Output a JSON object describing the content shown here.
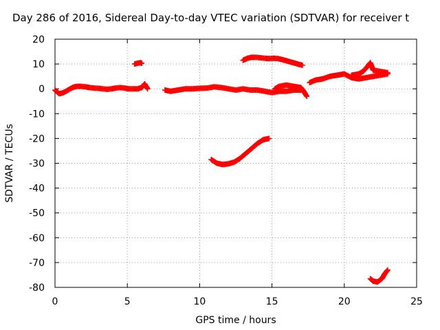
{
  "chart_data": {
    "type": "scatter",
    "title": "Day 286 of 2016, Sidereal Day-to-day VTEC variation (SDTVAR) for receiver t",
    "xlabel": "GPS time / hours",
    "ylabel": "SDTVAR / TECUs",
    "xlim": [
      0,
      25
    ],
    "ylim": [
      -80,
      20
    ],
    "xticks": [
      0,
      5,
      10,
      15,
      20,
      25
    ],
    "yticks": [
      20,
      10,
      0,
      -10,
      -20,
      -30,
      -40,
      -50,
      -60,
      -70,
      -80
    ],
    "grid": true,
    "marker": "plus",
    "color": "#ff0000",
    "series": [
      {
        "x": [
          0.0,
          0.3,
          0.6,
          0.9,
          1.2,
          1.5,
          1.8,
          2.1,
          2.4,
          2.7,
          3.0,
          3.3,
          3.6,
          3.9,
          4.2,
          4.5,
          4.8,
          5.1,
          5.4,
          5.7,
          6.0,
          6.2,
          6.4
        ],
        "y": [
          -0.5,
          -2.0,
          -1.5,
          -0.5,
          0.5,
          1.0,
          1.0,
          0.8,
          0.5,
          0.3,
          0.2,
          0.0,
          -0.2,
          0.0,
          0.3,
          0.5,
          0.3,
          0.0,
          0.0,
          0.0,
          0.5,
          2.0,
          0.0
        ]
      },
      {
        "x": [
          5.5,
          5.7,
          5.9,
          6.0
        ],
        "y": [
          10.0,
          10.3,
          10.5,
          10.3
        ]
      },
      {
        "x": [
          7.6,
          8.0,
          8.5,
          9.0,
          9.5,
          10.0,
          10.5,
          11.0,
          11.5,
          12.0,
          12.5,
          13.0,
          13.5,
          14.0,
          14.5,
          15.0,
          15.5,
          16.0,
          16.5,
          17.0
        ],
        "y": [
          -0.5,
          -1.0,
          -0.5,
          0.0,
          0.0,
          0.2,
          0.3,
          0.8,
          0.5,
          0.0,
          -0.5,
          0.0,
          -0.5,
          -0.5,
          -1.0,
          -1.5,
          -1.0,
          -1.0,
          -0.5,
          -0.5
        ]
      },
      {
        "x": [
          15.2,
          15.5,
          16.0,
          16.5,
          17.0,
          17.2,
          17.4
        ],
        "y": [
          0.0,
          1.0,
          1.5,
          1.0,
          0.5,
          -1.0,
          -3.0
        ]
      },
      {
        "x": [
          13.0,
          13.3,
          13.6,
          13.9,
          14.2,
          14.5,
          14.8,
          15.1,
          15.4,
          15.7,
          16.0,
          16.3,
          16.6,
          16.9,
          17.1
        ],
        "y": [
          11.5,
          12.3,
          12.7,
          12.7,
          12.5,
          12.3,
          12.2,
          12.3,
          12.2,
          11.8,
          11.3,
          10.8,
          10.3,
          9.8,
          9.5
        ]
      },
      {
        "x": [
          17.6,
          17.8,
          18.0,
          18.5,
          19.0,
          19.5,
          20.0,
          20.5,
          21.0,
          21.5,
          22.0,
          22.5,
          23.0
        ],
        "y": [
          2.5,
          3.0,
          3.5,
          4.0,
          5.0,
          5.5,
          6.0,
          4.5,
          4.0,
          4.5,
          5.0,
          5.5,
          6.0
        ]
      },
      {
        "x": [
          20.5,
          21.0,
          21.3,
          21.6,
          21.8,
          22.0,
          22.5,
          23.0
        ],
        "y": [
          5.5,
          6.0,
          7.0,
          9.0,
          10.5,
          7.5,
          7.0,
          6.5
        ]
      },
      {
        "x": [
          10.8,
          11.2,
          11.6,
          12.0,
          12.4,
          12.8,
          13.2,
          13.6,
          14.0,
          14.4,
          14.8
        ],
        "y": [
          -28.5,
          -30.0,
          -30.5,
          -30.2,
          -29.5,
          -28.0,
          -26.0,
          -24.0,
          -22.0,
          -20.5,
          -20.0
        ]
      },
      {
        "x": [
          21.8,
          22.0,
          22.3,
          22.6,
          22.8,
          23.0
        ],
        "y": [
          -76.5,
          -77.5,
          -77.8,
          -76.5,
          -74.5,
          -73.0
        ]
      }
    ]
  }
}
